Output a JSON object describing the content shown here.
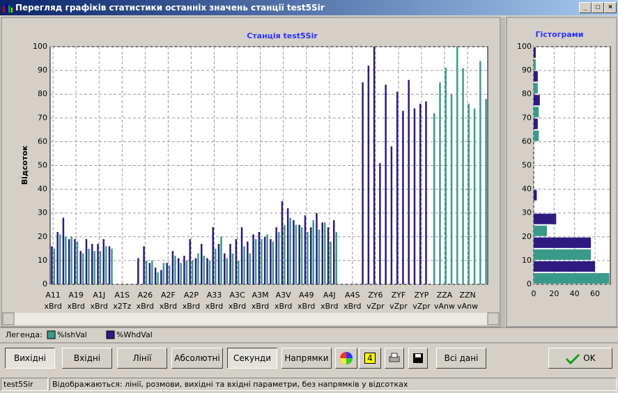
{
  "window": {
    "title": "Перегляд графіків статистики останніх значень станції test5Sir"
  },
  "chart_data": [
    {
      "type": "bar",
      "title": "Станція test5Sir",
      "y_label": "Відсоток",
      "ylim": [
        0,
        100
      ],
      "yticks": [
        0,
        10,
        20,
        30,
        40,
        50,
        60,
        70,
        80,
        90,
        100
      ],
      "grid": true,
      "legend_label": "Легенда:",
      "categories": [
        [
          "A11",
          "xBrd"
        ],
        null,
        null,
        null,
        [
          "A19",
          "xBrd"
        ],
        null,
        null,
        null,
        [
          "A1J",
          "xBrd"
        ],
        null,
        null,
        null,
        [
          "A1S",
          "x2Tz"
        ],
        null,
        null,
        null,
        [
          "A26",
          "xBrd"
        ],
        null,
        null,
        null,
        [
          "A2F",
          "xBrd"
        ],
        null,
        null,
        null,
        [
          "A2P",
          "xBrd"
        ],
        null,
        null,
        null,
        [
          "A33",
          "xBrd"
        ],
        null,
        null,
        null,
        [
          "A3C",
          "xBrd"
        ],
        null,
        null,
        null,
        [
          "A3M",
          "xBrd"
        ],
        null,
        null,
        null,
        [
          "A3V",
          "xBrd"
        ],
        null,
        null,
        null,
        [
          "A49",
          "xBrd"
        ],
        null,
        null,
        null,
        [
          "A4J",
          "xBrd"
        ],
        null,
        null,
        null,
        [
          "A4S",
          "xBrd"
        ],
        null,
        null,
        null,
        [
          "ZY6",
          "vZpr"
        ],
        null,
        null,
        null,
        [
          "ZYF",
          "vZpr"
        ],
        null,
        null,
        null,
        [
          "ZYP",
          "vZpr"
        ],
        null,
        null,
        null,
        [
          "ZZA",
          "vAnw"
        ],
        null,
        null,
        null,
        [
          "ZZN",
          "vAnw"
        ],
        null,
        null,
        null
      ],
      "series": [
        {
          "name": "%IshVal",
          "color": "#3a9a8a",
          "values": [
            15,
            21,
            20,
            20,
            18,
            13,
            15,
            14,
            14,
            16,
            15,
            null,
            null,
            null,
            null,
            null,
            10,
            10,
            5,
            9,
            8,
            12,
            9,
            10,
            10,
            13,
            12,
            10,
            15,
            20,
            11,
            13,
            10,
            16,
            13,
            19,
            19,
            21,
            18,
            22,
            25,
            28,
            25,
            24,
            22,
            27,
            23,
            26,
            18,
            22,
            null,
            null,
            null,
            null,
            null,
            null,
            null,
            null,
            null,
            null,
            null,
            null,
            null,
            null,
            null,
            null,
            72,
            85,
            91,
            80,
            100,
            91,
            76,
            74,
            94,
            78
          ]
        },
        {
          "name": "%WhdVal",
          "color": "#2e1a80",
          "values": [
            16,
            22,
            28,
            19,
            19,
            14,
            19,
            17,
            17,
            19,
            16,
            null,
            null,
            null,
            null,
            11,
            16,
            9,
            7,
            6,
            9,
            14,
            11,
            12,
            19,
            11,
            17,
            11,
            24,
            17,
            13,
            17,
            19,
            24,
            18,
            21,
            22,
            20,
            19,
            24,
            35,
            32,
            27,
            25,
            29,
            24,
            30,
            26,
            24,
            27,
            null,
            null,
            null,
            null,
            85,
            92,
            100,
            51,
            84,
            58,
            81,
            73,
            86,
            74,
            76,
            77,
            null,
            null,
            null,
            null,
            null,
            null,
            null,
            null,
            null,
            null
          ]
        }
      ]
    },
    {
      "type": "histogram",
      "title": "Гістограми",
      "orientation": "horizontal",
      "bins": [
        0,
        10,
        20,
        30,
        40,
        50,
        60,
        70,
        80,
        90,
        100
      ],
      "ylim": [
        0,
        100
      ],
      "yticks": [
        0,
        10,
        20,
        30,
        40,
        50,
        60,
        70,
        80,
        90,
        100
      ],
      "xlim": [
        0,
        75
      ],
      "xticks": [
        0,
        20,
        40,
        60
      ],
      "grid": true,
      "series": [
        {
          "name": "%IshVal",
          "color": "#3a9a8a",
          "values": [
            74,
            56,
            13,
            0,
            0,
            0,
            5,
            5,
            4,
            2
          ]
        },
        {
          "name": "%WhdVal",
          "color": "#2e1a80",
          "values": [
            60,
            56,
            22,
            3,
            0,
            0,
            4,
            6,
            4,
            2
          ]
        }
      ]
    }
  ],
  "buttons": [
    "Вихідні",
    "Вхідні",
    "Лінії",
    "Абсолютні",
    "Секунди",
    "Напрямки",
    "4",
    "Всі дані",
    "OK"
  ],
  "status": [
    "test5Sir",
    "Відображаються: лінії, розмови, вихідні та вхідні параметри, без напрямків у відсотках"
  ]
}
